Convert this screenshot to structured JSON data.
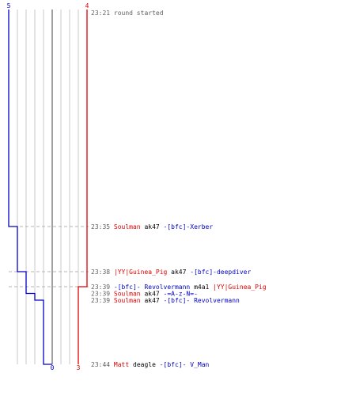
{
  "round_start": {
    "time": "23:21",
    "text": "round started"
  },
  "teams": {
    "blue": {
      "color": "#0000c8",
      "start_count": "5",
      "end_count": "0"
    },
    "red": {
      "color": "#e00000",
      "start_count": "4",
      "end_count": "3"
    }
  },
  "colors": {
    "time": "#606060",
    "weapon": "#000000",
    "grid": "#c8c8c8",
    "center": "#808080",
    "dashed": "#b4b4b4"
  },
  "events": [
    {
      "time": "23:35",
      "killer": "Soulman",
      "killer_team": "red",
      "weapon": "ak47",
      "victim": "-[bfc]-Xerber",
      "victim_team": "blue",
      "blue_after": 4,
      "red_after": 4
    },
    {
      "time": "23:38",
      "killer": "|YY|Guinea_Pig",
      "killer_team": "red",
      "weapon": "ak47",
      "victim": "-[bfc]-deepdiver",
      "victim_team": "blue",
      "blue_after": 3,
      "red_after": 4
    },
    {
      "time": "23:39",
      "killer": "-[bfc]- Revolvermann",
      "killer_team": "blue",
      "weapon": "m4a1",
      "victim": "|YY|Guinea_Pig",
      "victim_team": "red",
      "blue_after": 3,
      "red_after": 3
    },
    {
      "time": "23:39",
      "killer": "Soulman",
      "killer_team": "red",
      "weapon": "ak47",
      "victim": "-=A-z-N=-",
      "victim_team": "blue",
      "blue_after": 2,
      "red_after": 3
    },
    {
      "time": "23:39",
      "killer": "Soulman",
      "killer_team": "red",
      "weapon": "ak47",
      "victim": "-[bfc]- Revolvermann",
      "victim_team": "blue",
      "blue_after": 1,
      "red_after": 3
    },
    {
      "time": "23:44",
      "killer": "Matt",
      "killer_team": "red",
      "weapon": "deagle",
      "victim": "-[bfc]- V_Man",
      "victim_team": "blue",
      "blue_after": 0,
      "red_after": 3
    }
  ],
  "chart_data": {
    "type": "line",
    "x_label_unit": "players alive",
    "series": [
      {
        "team": "blue",
        "values": [
          5,
          4,
          3,
          3,
          2,
          1,
          0
        ]
      },
      {
        "team": "red",
        "values": [
          4,
          4,
          4,
          3,
          3,
          3,
          3
        ]
      }
    ],
    "times": [
      "23:21",
      "23:35",
      "23:38",
      "23:39",
      "23:39",
      "23:39",
      "23:44"
    ]
  }
}
